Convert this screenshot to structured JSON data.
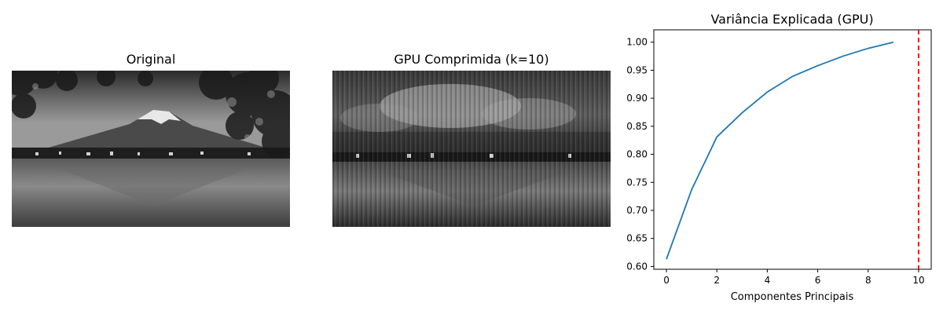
{
  "panels": [
    {
      "title": "Original"
    },
    {
      "title": "GPU Comprimida (k=10)"
    }
  ],
  "chart_data": {
    "type": "line",
    "title": "Variância Explicada (GPU)",
    "xlabel": "Componentes Principais",
    "ylabel": "",
    "x": [
      0,
      1,
      2,
      3,
      4,
      5,
      6,
      7,
      8,
      9
    ],
    "series": [
      {
        "color": "#1f77b4",
        "values": [
          0.613,
          0.737,
          0.831,
          0.874,
          0.911,
          0.939,
          0.958,
          0.975,
          0.989,
          1.0
        ]
      }
    ],
    "reference_line": {
      "axis": "x",
      "value": 10,
      "color": "#ff0000",
      "style": "dashed"
    },
    "xlim": [
      -0.5,
      10.5
    ],
    "ylim": [
      0.595,
      1.022
    ],
    "xticks": [
      "0",
      "2",
      "4",
      "6",
      "8",
      "10"
    ],
    "yticks": [
      "0.60",
      "0.65",
      "0.70",
      "0.75",
      "0.80",
      "0.85",
      "0.90",
      "0.95",
      "1.00"
    ],
    "grid": false
  }
}
